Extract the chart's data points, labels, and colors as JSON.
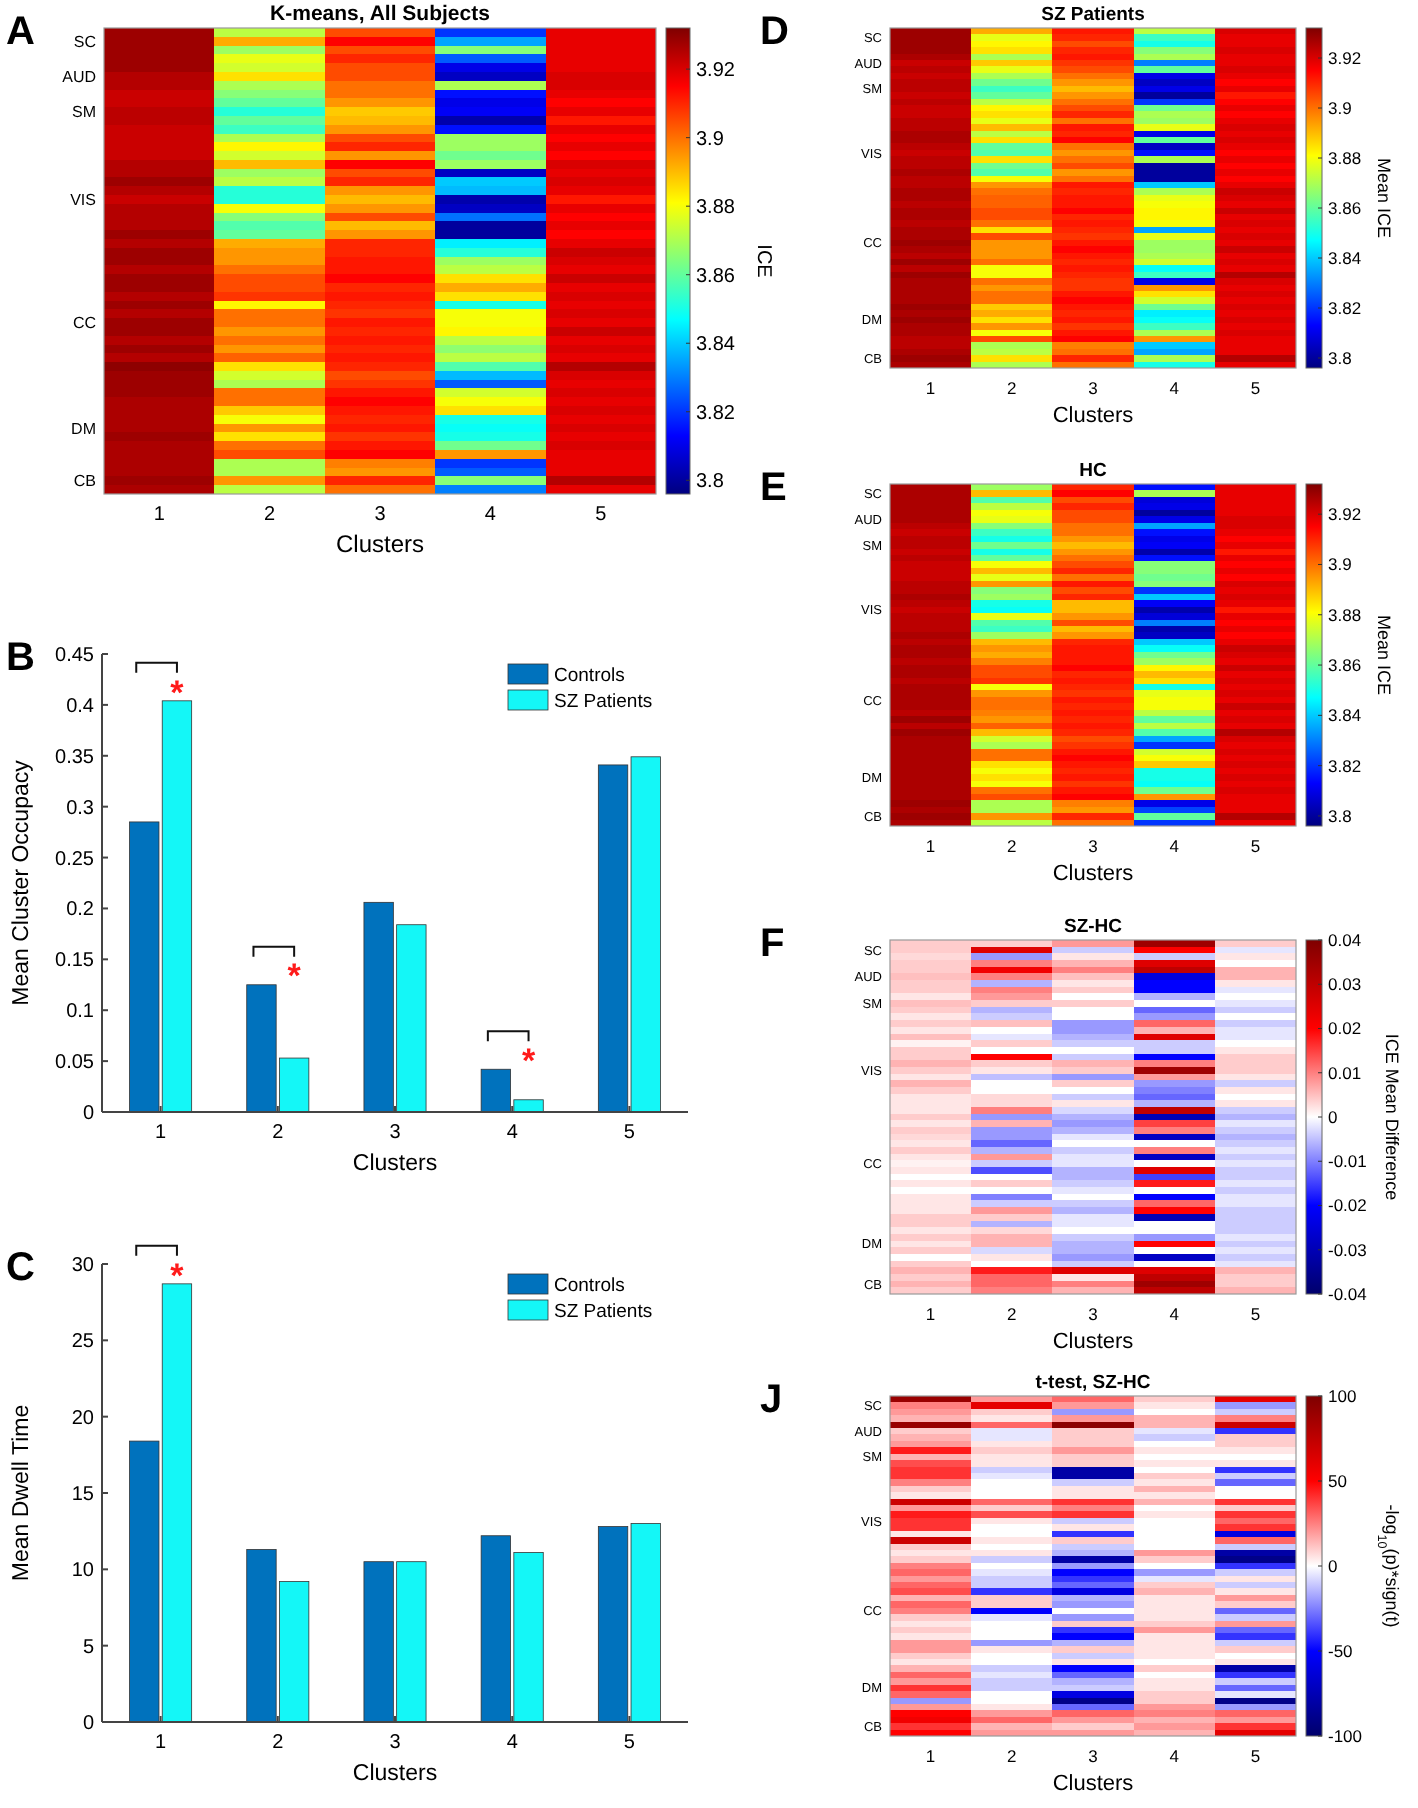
{
  "chart_data": [
    {
      "type": "heatmap",
      "title": "K-means, All Subjects",
      "xlabel": "Clusters",
      "clabel": "ICE",
      "annotations": [
        "A"
      ],
      "categories": [
        "1",
        "2",
        "3",
        "4",
        "5"
      ],
      "y_categories": [
        null,
        "SC",
        null,
        null,
        null,
        "AUD",
        null,
        null,
        null,
        "SM",
        null,
        null,
        null,
        null,
        null,
        null,
        null,
        null,
        null,
        "VIS",
        null,
        null,
        null,
        null,
        null,
        null,
        null,
        null,
        null,
        null,
        null,
        null,
        null,
        "CC",
        null,
        null,
        null,
        null,
        null,
        null,
        null,
        null,
        null,
        null,
        null,
        "DM",
        null,
        null,
        null,
        null,
        null,
        "CB",
        null
      ],
      "clim": [
        3.796,
        3.932
      ],
      "cticks": [
        3.8,
        3.82,
        3.84,
        3.86,
        3.88,
        3.9,
        3.92
      ],
      "cells": [
        [
          3.928,
          3.872,
          3.905,
          3.82,
          3.918
        ],
        [
          3.928,
          3.892,
          3.915,
          3.835,
          3.918
        ],
        [
          3.928,
          3.868,
          3.905,
          3.865,
          3.918
        ],
        [
          3.928,
          3.878,
          3.91,
          3.825,
          3.918
        ],
        [
          3.928,
          3.875,
          3.905,
          3.81,
          3.918
        ],
        [
          3.925,
          3.885,
          3.905,
          3.805,
          3.92
        ],
        [
          3.925,
          3.87,
          3.9,
          3.87,
          3.92
        ],
        [
          3.922,
          3.865,
          3.9,
          3.815,
          3.918
        ],
        [
          3.922,
          3.86,
          3.895,
          3.81,
          3.915
        ],
        [
          3.924,
          3.852,
          3.888,
          3.812,
          3.918
        ],
        [
          3.924,
          3.86,
          3.89,
          3.802,
          3.912
        ],
        [
          3.922,
          3.855,
          3.895,
          3.815,
          3.918
        ],
        [
          3.922,
          3.87,
          3.905,
          3.868,
          3.915
        ],
        [
          3.922,
          3.882,
          3.91,
          3.868,
          3.918
        ],
        [
          3.922,
          3.875,
          3.895,
          3.862,
          3.915
        ],
        [
          3.925,
          3.89,
          3.915,
          3.868,
          3.92
        ],
        [
          3.925,
          3.868,
          3.905,
          3.805,
          3.918
        ],
        [
          3.928,
          3.872,
          3.91,
          3.84,
          3.92
        ],
        [
          3.925,
          3.852,
          3.895,
          3.838,
          3.918
        ],
        [
          3.922,
          3.852,
          3.89,
          3.802,
          3.912
        ],
        [
          3.925,
          3.88,
          3.895,
          3.805,
          3.918
        ],
        [
          3.925,
          3.865,
          3.905,
          3.828,
          3.915
        ],
        [
          3.925,
          3.858,
          3.89,
          3.8,
          3.918
        ],
        [
          3.928,
          3.86,
          3.895,
          3.8,
          3.915
        ],
        [
          3.925,
          3.892,
          3.91,
          3.845,
          3.918
        ],
        [
          3.928,
          3.895,
          3.91,
          3.852,
          3.922
        ],
        [
          3.928,
          3.895,
          3.912,
          3.868,
          3.92
        ],
        [
          3.925,
          3.9,
          3.912,
          3.872,
          3.918
        ],
        [
          3.928,
          3.905,
          3.915,
          3.885,
          3.922
        ],
        [
          3.928,
          3.905,
          3.91,
          3.892,
          3.918
        ],
        [
          3.925,
          3.908,
          3.912,
          3.885,
          3.92
        ],
        [
          3.928,
          3.882,
          3.91,
          3.85,
          3.918
        ],
        [
          3.925,
          3.9,
          3.908,
          3.88,
          3.92
        ],
        [
          3.928,
          3.9,
          3.912,
          3.88,
          3.918
        ],
        [
          3.928,
          3.895,
          3.91,
          3.882,
          3.922
        ],
        [
          3.925,
          3.9,
          3.912,
          3.872,
          3.918
        ],
        [
          3.928,
          3.895,
          3.91,
          3.866,
          3.92
        ],
        [
          3.925,
          3.902,
          3.912,
          3.872,
          3.918
        ],
        [
          3.93,
          3.885,
          3.91,
          3.858,
          3.925
        ],
        [
          3.928,
          3.875,
          3.905,
          3.838,
          3.92
        ],
        [
          3.928,
          3.87,
          3.908,
          3.825,
          3.918
        ],
        [
          3.928,
          3.9,
          3.912,
          3.875,
          3.92
        ],
        [
          3.926,
          3.9,
          3.915,
          3.88,
          3.918
        ],
        [
          3.926,
          3.888,
          3.912,
          3.885,
          3.92
        ],
        [
          3.926,
          3.88,
          3.91,
          3.85,
          3.918
        ],
        [
          3.926,
          3.895,
          3.912,
          3.848,
          3.92
        ],
        [
          3.928,
          3.885,
          3.908,
          3.85,
          3.918
        ],
        [
          3.926,
          3.9,
          3.912,
          3.862,
          3.92
        ],
        [
          3.926,
          3.905,
          3.915,
          3.895,
          3.918
        ],
        [
          3.926,
          3.87,
          3.898,
          3.82,
          3.918
        ],
        [
          3.926,
          3.87,
          3.895,
          3.825,
          3.918
        ],
        [
          3.928,
          3.895,
          3.91,
          3.865,
          3.925
        ],
        [
          3.926,
          3.872,
          3.9,
          3.83,
          3.918
        ]
      ]
    },
    {
      "type": "bar",
      "xlabel": "Clusters",
      "ylabel": "Mean Cluster Occupacy",
      "annotations": [
        "B",
        {
          "text": "*",
          "x": "1",
          "y": 0.404
        },
        {
          "text": "*",
          "x": "2",
          "y": 0.125
        },
        {
          "text": "*",
          "x": "4",
          "y": 0.042
        }
      ],
      "categories": [
        "1",
        "2",
        "3",
        "4",
        "5"
      ],
      "legend": "top right",
      "ylim": [
        0,
        0.45
      ],
      "yticks": [
        0,
        0.05,
        0.1,
        0.15,
        0.2,
        0.25,
        0.3,
        0.35,
        0.4,
        0.45
      ],
      "series": [
        {
          "name": "Controls",
          "color": "#0072bd",
          "values": [
            0.285,
            0.125,
            0.206,
            0.042,
            0.341
          ]
        },
        {
          "name": "SZ Patients",
          "color": "#14f7f7",
          "values": [
            0.404,
            0.053,
            0.184,
            0.012,
            0.349
          ]
        }
      ]
    },
    {
      "type": "bar",
      "xlabel": "Clusters",
      "ylabel": "Mean Dwell Time",
      "annotations": [
        "C",
        {
          "text": "*",
          "x": "1",
          "y": 28.7
        }
      ],
      "categories": [
        "1",
        "2",
        "3",
        "4",
        "5"
      ],
      "legend": "top right",
      "ylim": [
        0,
        30
      ],
      "yticks": [
        0,
        5,
        10,
        15,
        20,
        25,
        30
      ],
      "series": [
        {
          "name": "Controls",
          "color": "#0072bd",
          "values": [
            18.4,
            11.3,
            10.5,
            12.2,
            12.8
          ]
        },
        {
          "name": "SZ Patients",
          "color": "#14f7f7",
          "values": [
            28.7,
            9.2,
            10.5,
            11.1,
            13.0
          ]
        }
      ]
    },
    {
      "type": "heatmap",
      "title": "SZ Patients",
      "xlabel": "Clusters",
      "clabel": "Mean ICE",
      "annotations": [
        "D"
      ],
      "categories": [
        "1",
        "2",
        "3",
        "4",
        "5"
      ],
      "y_categories": [
        null,
        "SC",
        null,
        null,
        null,
        "AUD",
        null,
        null,
        null,
        "SM",
        null,
        null,
        null,
        null,
        null,
        null,
        null,
        null,
        null,
        "VIS",
        null,
        null,
        null,
        null,
        null,
        null,
        null,
        null,
        null,
        null,
        null,
        null,
        null,
        "CC",
        null,
        null,
        null,
        null,
        null,
        null,
        null,
        null,
        null,
        null,
        null,
        "DM",
        null,
        null,
        null,
        null,
        null,
        "CB",
        null
      ],
      "clim": [
        3.796,
        3.932
      ],
      "cticks": [
        3.8,
        3.82,
        3.84,
        3.86,
        3.88,
        3.9,
        3.92
      ],
      "cells": [
        [
          3.928,
          3.892,
          3.912,
          3.872,
          3.92
        ],
        [
          3.928,
          3.878,
          3.91,
          3.855,
          3.918
        ],
        [
          3.928,
          3.882,
          3.905,
          3.85,
          3.918
        ],
        [
          3.928,
          3.885,
          3.91,
          3.865,
          3.92
        ],
        [
          3.926,
          3.87,
          3.912,
          3.87,
          3.918
        ],
        [
          3.922,
          3.888,
          3.908,
          3.83,
          3.918
        ],
        [
          3.924,
          3.878,
          3.905,
          3.86,
          3.92
        ],
        [
          3.922,
          3.87,
          3.9,
          3.81,
          3.918
        ],
        [
          3.924,
          3.862,
          3.895,
          3.805,
          3.915
        ],
        [
          3.924,
          3.855,
          3.89,
          3.81,
          3.918
        ],
        [
          3.922,
          3.86,
          3.895,
          3.8,
          3.912
        ],
        [
          3.924,
          3.872,
          3.9,
          3.82,
          3.915
        ],
        [
          3.922,
          3.882,
          3.905,
          3.862,
          3.918
        ],
        [
          3.922,
          3.885,
          3.91,
          3.87,
          3.915
        ],
        [
          3.924,
          3.878,
          3.9,
          3.868,
          3.918
        ],
        [
          3.924,
          3.89,
          3.912,
          3.878,
          3.92
        ],
        [
          3.926,
          3.872,
          3.91,
          3.81,
          3.918
        ],
        [
          3.926,
          3.885,
          3.915,
          3.86,
          3.92
        ],
        [
          3.924,
          3.86,
          3.9,
          3.805,
          3.918
        ],
        [
          3.922,
          3.858,
          3.895,
          3.815,
          3.915
        ],
        [
          3.924,
          3.885,
          3.9,
          3.87,
          3.918
        ],
        [
          3.924,
          3.862,
          3.905,
          3.8,
          3.915
        ],
        [
          3.926,
          3.858,
          3.895,
          3.8,
          3.918
        ],
        [
          3.924,
          3.88,
          3.9,
          3.8,
          3.915
        ],
        [
          3.924,
          3.895,
          3.912,
          3.84,
          3.918
        ],
        [
          3.926,
          3.9,
          3.91,
          3.87,
          3.922
        ],
        [
          3.926,
          3.902,
          3.912,
          3.878,
          3.92
        ],
        [
          3.924,
          3.902,
          3.912,
          3.88,
          3.918
        ],
        [
          3.926,
          3.905,
          3.915,
          3.882,
          3.922
        ],
        [
          3.926,
          3.905,
          3.91,
          3.882,
          3.918
        ],
        [
          3.924,
          3.9,
          3.912,
          3.88,
          3.92
        ],
        [
          3.926,
          3.885,
          3.91,
          3.835,
          3.918
        ],
        [
          3.926,
          3.905,
          3.908,
          3.878,
          3.92
        ],
        [
          3.928,
          3.895,
          3.912,
          3.868,
          3.918
        ],
        [
          3.926,
          3.895,
          3.915,
          3.868,
          3.922
        ],
        [
          3.924,
          3.895,
          3.912,
          3.87,
          3.918
        ],
        [
          3.928,
          3.9,
          3.91,
          3.875,
          3.92
        ],
        [
          3.924,
          3.88,
          3.912,
          3.848,
          3.918
        ],
        [
          3.928,
          3.88,
          3.91,
          3.855,
          3.925
        ],
        [
          3.926,
          3.9,
          3.908,
          3.81,
          3.92
        ],
        [
          3.926,
          3.895,
          3.908,
          3.895,
          3.918
        ],
        [
          3.926,
          3.9,
          3.912,
          3.885,
          3.92
        ],
        [
          3.926,
          3.9,
          3.915,
          3.875,
          3.918
        ],
        [
          3.928,
          3.888,
          3.912,
          3.862,
          3.92
        ],
        [
          3.926,
          3.892,
          3.91,
          3.845,
          3.918
        ],
        [
          3.928,
          3.885,
          3.912,
          3.848,
          3.92
        ],
        [
          3.926,
          3.895,
          3.908,
          3.855,
          3.918
        ],
        [
          3.926,
          3.88,
          3.912,
          3.87,
          3.92
        ],
        [
          3.924,
          3.905,
          3.915,
          3.895,
          3.918
        ],
        [
          3.924,
          3.87,
          3.898,
          3.84,
          3.918
        ],
        [
          3.926,
          3.872,
          3.9,
          3.835,
          3.918
        ],
        [
          3.928,
          3.885,
          3.91,
          3.87,
          3.925
        ],
        [
          3.926,
          3.87,
          3.9,
          3.85,
          3.918
        ]
      ]
    },
    {
      "type": "heatmap",
      "title": "HC",
      "xlabel": "Clusters",
      "clabel": "Mean ICE",
      "annotations": [
        "E"
      ],
      "categories": [
        "1",
        "2",
        "3",
        "4",
        "5"
      ],
      "y_categories": [
        null,
        "SC",
        null,
        null,
        null,
        "AUD",
        null,
        null,
        null,
        "SM",
        null,
        null,
        null,
        null,
        null,
        null,
        null,
        null,
        null,
        "VIS",
        null,
        null,
        null,
        null,
        null,
        null,
        null,
        null,
        null,
        null,
        null,
        null,
        null,
        "CC",
        null,
        null,
        null,
        null,
        null,
        null,
        null,
        null,
        null,
        null,
        null,
        "DM",
        null,
        null,
        null,
        null,
        null,
        "CB",
        null
      ],
      "clim": [
        3.796,
        3.932
      ],
      "cticks": [
        3.8,
        3.82,
        3.84,
        3.86,
        3.88,
        3.9,
        3.92
      ],
      "cells": [
        [
          3.926,
          3.868,
          3.91,
          3.815,
          3.918
        ],
        [
          3.926,
          3.89,
          3.915,
          3.87,
          3.918
        ],
        [
          3.926,
          3.858,
          3.905,
          3.808,
          3.918
        ],
        [
          3.926,
          3.872,
          3.91,
          3.81,
          3.918
        ],
        [
          3.926,
          3.88,
          3.905,
          3.8,
          3.918
        ],
        [
          3.926,
          3.878,
          3.905,
          3.81,
          3.92
        ],
        [
          3.924,
          3.865,
          3.9,
          3.835,
          3.92
        ],
        [
          3.922,
          3.855,
          3.9,
          3.815,
          3.918
        ],
        [
          3.924,
          3.85,
          3.895,
          3.81,
          3.915
        ],
        [
          3.924,
          3.862,
          3.89,
          3.812,
          3.918
        ],
        [
          3.922,
          3.85,
          3.895,
          3.802,
          3.912
        ],
        [
          3.924,
          3.86,
          3.9,
          3.815,
          3.918
        ],
        [
          3.922,
          3.88,
          3.905,
          3.865,
          3.915
        ],
        [
          3.922,
          3.89,
          3.91,
          3.865,
          3.918
        ],
        [
          3.922,
          3.878,
          3.9,
          3.862,
          3.915
        ],
        [
          3.924,
          3.895,
          3.912,
          3.865,
          3.92
        ],
        [
          3.924,
          3.865,
          3.905,
          3.82,
          3.918
        ],
        [
          3.926,
          3.868,
          3.91,
          3.84,
          3.92
        ],
        [
          3.924,
          3.85,
          3.89,
          3.812,
          3.918
        ],
        [
          3.922,
          3.848,
          3.89,
          3.802,
          3.912
        ],
        [
          3.924,
          3.878,
          3.895,
          3.808,
          3.918
        ],
        [
          3.924,
          3.858,
          3.905,
          3.83,
          3.915
        ],
        [
          3.924,
          3.855,
          3.89,
          3.802,
          3.918
        ],
        [
          3.926,
          3.868,
          3.895,
          3.805,
          3.915
        ],
        [
          3.924,
          3.89,
          3.91,
          3.84,
          3.918
        ],
        [
          3.926,
          3.895,
          3.912,
          3.848,
          3.922
        ],
        [
          3.926,
          3.892,
          3.912,
          3.862,
          3.92
        ],
        [
          3.924,
          3.898,
          3.912,
          3.868,
          3.918
        ],
        [
          3.926,
          3.905,
          3.915,
          3.882,
          3.922
        ],
        [
          3.926,
          3.905,
          3.91,
          3.89,
          3.918
        ],
        [
          3.924,
          3.908,
          3.912,
          3.885,
          3.92
        ],
        [
          3.926,
          3.88,
          3.91,
          3.85,
          3.918
        ],
        [
          3.926,
          3.895,
          3.908,
          3.878,
          3.92
        ],
        [
          3.926,
          3.9,
          3.912,
          3.88,
          3.918
        ],
        [
          3.926,
          3.9,
          3.91,
          3.88,
          3.922
        ],
        [
          3.924,
          3.898,
          3.912,
          3.872,
          3.918
        ],
        [
          3.928,
          3.895,
          3.91,
          3.86,
          3.92
        ],
        [
          3.924,
          3.902,
          3.912,
          3.872,
          3.918
        ],
        [
          3.928,
          3.89,
          3.91,
          3.858,
          3.925
        ],
        [
          3.926,
          3.875,
          3.905,
          3.835,
          3.92
        ],
        [
          3.926,
          3.87,
          3.908,
          3.82,
          3.918
        ],
        [
          3.926,
          3.9,
          3.912,
          3.875,
          3.92
        ],
        [
          3.926,
          3.9,
          3.915,
          3.88,
          3.918
        ],
        [
          3.926,
          3.885,
          3.912,
          3.888,
          3.92
        ],
        [
          3.926,
          3.88,
          3.91,
          3.85,
          3.918
        ],
        [
          3.926,
          3.885,
          3.912,
          3.85,
          3.92
        ],
        [
          3.926,
          3.88,
          3.908,
          3.848,
          3.918
        ],
        [
          3.926,
          3.9,
          3.912,
          3.862,
          3.92
        ],
        [
          3.926,
          3.905,
          3.915,
          3.895,
          3.918
        ],
        [
          3.928,
          3.87,
          3.898,
          3.81,
          3.918
        ],
        [
          3.926,
          3.87,
          3.895,
          3.822,
          3.918
        ],
        [
          3.928,
          3.895,
          3.91,
          3.86,
          3.925
        ],
        [
          3.926,
          3.872,
          3.9,
          3.82,
          3.918
        ]
      ]
    },
    {
      "type": "heatmap",
      "title": "SZ-HC",
      "xlabel": "Clusters",
      "clabel": "ICE Mean Difference",
      "annotations": [
        "F"
      ],
      "categories": [
        "1",
        "2",
        "3",
        "4",
        "5"
      ],
      "y_categories": [
        null,
        "SC",
        null,
        null,
        null,
        "AUD",
        null,
        null,
        null,
        "SM",
        null,
        null,
        null,
        null,
        null,
        null,
        null,
        null,
        null,
        "VIS",
        null,
        null,
        null,
        null,
        null,
        null,
        null,
        null,
        null,
        null,
        null,
        null,
        null,
        "CC",
        null,
        null,
        null,
        null,
        null,
        null,
        null,
        null,
        null,
        null,
        null,
        "DM",
        null,
        null,
        null,
        null,
        null,
        "CB",
        null
      ],
      "clim": [
        -0.04,
        0.04
      ],
      "cticks": [
        -0.04,
        -0.03,
        -0.02,
        -0.01,
        0,
        0.01,
        0.02,
        0.03,
        0.04
      ],
      "cells": [
        [
          0.004,
          0.004,
          0.008,
          0.035,
          0.004
        ],
        [
          0.004,
          0.025,
          -0.004,
          0.02,
          -0.002
        ],
        [
          0.003,
          -0.008,
          0.002,
          -0.004,
          0.002
        ],
        [
          0.004,
          0.01,
          0.006,
          0.025,
          0.0
        ],
        [
          0.004,
          0.022,
          0.01,
          0.03,
          0.006
        ],
        [
          0.005,
          0.01,
          0.005,
          -0.025,
          0.006
        ],
        [
          0.004,
          -0.006,
          0.002,
          -0.02,
          0.002
        ],
        [
          0.004,
          0.01,
          0.004,
          -0.02,
          -0.002
        ],
        [
          0.002,
          0.008,
          0.0,
          -0.006,
          0.0
        ],
        [
          0.005,
          0.004,
          0.004,
          0.0,
          -0.002
        ],
        [
          0.004,
          -0.006,
          0.0,
          -0.012,
          -0.004
        ],
        [
          0.002,
          -0.004,
          0.0,
          -0.008,
          0.0
        ],
        [
          0.004,
          0.005,
          -0.008,
          0.012,
          -0.004
        ],
        [
          0.002,
          0.0,
          -0.008,
          0.006,
          -0.002
        ],
        [
          0.005,
          -0.002,
          -0.006,
          0.025,
          -0.002
        ],
        [
          0.001,
          0.004,
          -0.004,
          -0.004,
          0.0
        ],
        [
          0.004,
          0.0,
          0.0,
          -0.004,
          0.002
        ],
        [
          0.004,
          0.02,
          -0.004,
          -0.02,
          0.004
        ],
        [
          0.006,
          0.004,
          0.006,
          0.01,
          0.004
        ],
        [
          0.004,
          0.002,
          0.004,
          0.035,
          0.004
        ],
        [
          0.002,
          -0.005,
          -0.008,
          0.008,
          0.002
        ],
        [
          0.006,
          0.0,
          0.004,
          -0.008,
          -0.004
        ],
        [
          0.004,
          0.0,
          0.0,
          -0.01,
          0.002
        ],
        [
          0.002,
          0.003,
          -0.004,
          -0.012,
          0.0
        ],
        [
          0.002,
          0.003,
          0.002,
          -0.006,
          0.002
        ],
        [
          0.002,
          0.01,
          -0.003,
          0.03,
          -0.004
        ],
        [
          0.004,
          -0.008,
          -0.006,
          -0.03,
          -0.006
        ],
        [
          0.002,
          0.006,
          -0.008,
          0.015,
          -0.002
        ],
        [
          0.004,
          -0.008,
          -0.006,
          0.01,
          -0.004
        ],
        [
          0.003,
          -0.008,
          -0.002,
          -0.028,
          -0.006
        ],
        [
          0.002,
          -0.012,
          0.0,
          0.0,
          -0.004
        ],
        [
          0.004,
          -0.006,
          -0.004,
          0.01,
          -0.002
        ],
        [
          0.002,
          0.008,
          -0.002,
          -0.028,
          -0.004
        ],
        [
          0.001,
          -0.004,
          -0.002,
          0.0,
          -0.002
        ],
        [
          0.002,
          -0.014,
          -0.006,
          0.025,
          -0.004
        ],
        [
          0.0,
          0.0,
          -0.006,
          -0.015,
          -0.004
        ],
        [
          0.002,
          0.004,
          -0.004,
          0.018,
          -0.002
        ],
        [
          0.0,
          0.0,
          -0.002,
          0.0,
          -0.004
        ],
        [
          0.002,
          -0.01,
          0.0,
          -0.02,
          -0.002
        ],
        [
          0.002,
          -0.004,
          -0.004,
          0.012,
          -0.002
        ],
        [
          0.002,
          0.008,
          -0.006,
          0.02,
          -0.004
        ],
        [
          0.004,
          0.004,
          -0.002,
          -0.03,
          -0.004
        ],
        [
          0.004,
          -0.006,
          -0.002,
          0.0,
          -0.004
        ],
        [
          0.002,
          0.003,
          0.0,
          0.0,
          -0.004
        ],
        [
          0.004,
          0.006,
          -0.004,
          -0.008,
          -0.002
        ],
        [
          0.002,
          0.006,
          -0.006,
          0.02,
          -0.004
        ],
        [
          0.004,
          -0.003,
          -0.006,
          0.0,
          -0.002
        ],
        [
          0.0,
          0.002,
          -0.008,
          -0.028,
          -0.004
        ],
        [
          0.004,
          0.0,
          -0.004,
          0.0,
          -0.002
        ],
        [
          0.006,
          0.018,
          0.025,
          0.025,
          0.006
        ],
        [
          0.004,
          0.012,
          0.002,
          0.03,
          0.004
        ],
        [
          0.006,
          0.012,
          0.01,
          0.035,
          0.004
        ],
        [
          0.004,
          0.01,
          0.006,
          0.03,
          0.006
        ]
      ]
    },
    {
      "type": "heatmap",
      "title": "t-test, SZ-HC",
      "xlabel": "Clusters",
      "clabel": "-log$_{10}$(p)*sign(t)",
      "annotations": [
        "J"
      ],
      "categories": [
        "1",
        "2",
        "3",
        "4",
        "5"
      ],
      "y_categories": [
        null,
        "SC",
        null,
        null,
        null,
        "AUD",
        null,
        null,
        null,
        "SM",
        null,
        null,
        null,
        null,
        null,
        null,
        null,
        null,
        null,
        "VIS",
        null,
        null,
        null,
        null,
        null,
        null,
        null,
        null,
        null,
        null,
        null,
        null,
        null,
        "CC",
        null,
        null,
        null,
        null,
        null,
        null,
        null,
        null,
        null,
        null,
        null,
        "DM",
        null,
        null,
        null,
        null,
        null,
        "CB",
        null
      ],
      "clim": [
        -100,
        100
      ],
      "cticks": [
        -100,
        -50,
        0,
        50,
        100
      ],
      "cells": [
        [
          90,
          20,
          30,
          10,
          60
        ],
        [
          25,
          60,
          20,
          5,
          -20
        ],
        [
          20,
          10,
          -20,
          0,
          -10
        ],
        [
          15,
          5,
          20,
          15,
          25
        ],
        [
          90,
          30,
          95,
          15,
          70
        ],
        [
          10,
          -5,
          10,
          -5,
          -40
        ],
        [
          15,
          -5,
          10,
          -10,
          10
        ],
        [
          20,
          5,
          10,
          0,
          10
        ],
        [
          45,
          10,
          20,
          5,
          5
        ],
        [
          15,
          5,
          10,
          0,
          0
        ],
        [
          35,
          5,
          10,
          5,
          5
        ],
        [
          40,
          -10,
          -80,
          0,
          -40
        ],
        [
          40,
          -5,
          -80,
          10,
          -10
        ],
        [
          25,
          0,
          -10,
          5,
          -30
        ],
        [
          10,
          0,
          5,
          15,
          0
        ],
        [
          5,
          0,
          5,
          5,
          0
        ],
        [
          70,
          30,
          40,
          15,
          40
        ],
        [
          20,
          10,
          25,
          0,
          10
        ],
        [
          45,
          35,
          40,
          5,
          40
        ],
        [
          40,
          5,
          -10,
          0,
          30
        ],
        [
          40,
          0,
          5,
          0,
          40
        ],
        [
          5,
          0,
          -40,
          0,
          -60
        ],
        [
          70,
          5,
          10,
          0,
          30
        ],
        [
          10,
          0,
          -10,
          0,
          -10
        ],
        [
          5,
          5,
          -15,
          20,
          -80
        ],
        [
          10,
          -10,
          -80,
          10,
          -90
        ],
        [
          25,
          0,
          -20,
          0,
          -40
        ],
        [
          30,
          -5,
          -50,
          -20,
          -10
        ],
        [
          20,
          -10,
          -40,
          -5,
          5
        ],
        [
          30,
          -10,
          -30,
          10,
          -10
        ],
        [
          35,
          -40,
          -60,
          15,
          5
        ],
        [
          15,
          10,
          -15,
          5,
          20
        ],
        [
          30,
          10,
          -20,
          5,
          10
        ],
        [
          25,
          -50,
          0,
          5,
          -30
        ],
        [
          10,
          -5,
          -20,
          5,
          -10
        ],
        [
          5,
          0,
          10,
          10,
          20
        ],
        [
          10,
          0,
          -40,
          20,
          -30
        ],
        [
          5,
          0,
          -50,
          5,
          -40
        ],
        [
          20,
          -20,
          -15,
          5,
          -10
        ],
        [
          20,
          5,
          10,
          5,
          10
        ],
        [
          10,
          0,
          -10,
          5,
          0
        ],
        [
          5,
          0,
          5,
          0,
          5
        ],
        [
          15,
          -10,
          -50,
          10,
          -80
        ],
        [
          30,
          -5,
          -30,
          0,
          -40
        ],
        [
          20,
          -10,
          -15,
          5,
          -10
        ],
        [
          40,
          -10,
          -10,
          5,
          -30
        ],
        [
          30,
          0,
          -60,
          10,
          -5
        ],
        [
          -20,
          0,
          -90,
          10,
          -90
        ],
        [
          20,
          5,
          -30,
          20,
          -20
        ],
        [
          50,
          20,
          30,
          25,
          30
        ],
        [
          55,
          30,
          20,
          15,
          20
        ],
        [
          40,
          15,
          10,
          20,
          40
        ],
        [
          50,
          20,
          20,
          15,
          60
        ]
      ]
    }
  ]
}
